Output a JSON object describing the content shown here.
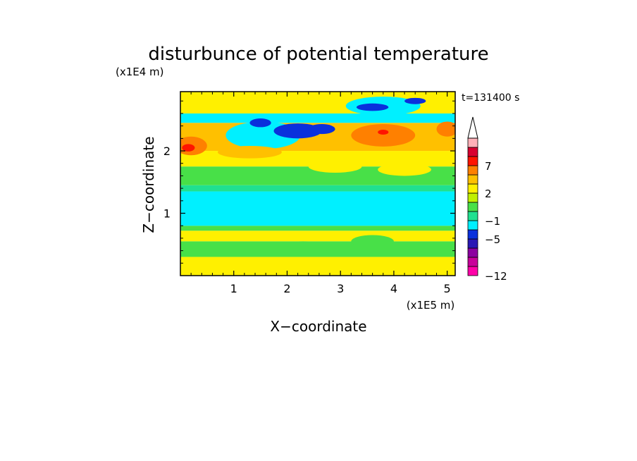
{
  "chart_data": {
    "type": "heatmap",
    "title": "disturbunce of potential temperature",
    "time_label": "t=131400 s",
    "xlabel": "X−coordinate",
    "ylabel": "Z−coordinate",
    "x_scale_label": "(x1E5 m)",
    "y_scale_label": "(x1E4 m)",
    "xlim": [
      0,
      5.15
    ],
    "ylim": [
      0,
      2.95
    ],
    "x_ticks": [
      1,
      2,
      3,
      4,
      5
    ],
    "y_ticks": [
      1,
      2
    ],
    "x_tick_labels": [
      "1",
      "2",
      "3",
      "4",
      "5"
    ],
    "y_tick_labels": [
      "1",
      "2"
    ],
    "colorbar": {
      "levels": [
        -12,
        -11,
        -9,
        -7,
        -5,
        -3,
        -1,
        0,
        1,
        2,
        3,
        5,
        7,
        9,
        11
      ],
      "labeled_levels": [
        {
          "value": 7,
          "text": "7"
        },
        {
          "value": 2,
          "text": "2"
        },
        {
          "value": -1,
          "text": "−1"
        },
        {
          "value": -5,
          "text": "−5"
        },
        {
          "value": -12,
          "text": "−12"
        }
      ],
      "colors": [
        "#ff00a8",
        "#c8009a",
        "#8c00a0",
        "#2a18b4",
        "#0a30dc",
        "#00f0ff",
        "#20e090",
        "#48e048",
        "#c0f000",
        "#fff000",
        "#ffc000",
        "#ff8000",
        "#ff1400",
        "#d80030",
        "#ffb0b8"
      ],
      "extend_top": true
    },
    "bands": [
      {
        "z": [
          0.0,
          0.3
        ],
        "color": "#fff000"
      },
      {
        "z": [
          0.3,
          0.55
        ],
        "color": "#48e048"
      },
      {
        "z": [
          0.55,
          0.72
        ],
        "color": "#fff000"
      },
      {
        "z": [
          0.72,
          0.8
        ],
        "color": "#48e048"
      },
      {
        "z": [
          0.8,
          1.35
        ],
        "color": "#00f0ff"
      },
      {
        "z": [
          1.35,
          1.45
        ],
        "color": "#20e090"
      },
      {
        "z": [
          1.45,
          1.75
        ],
        "color": "#48e048"
      },
      {
        "z": [
          1.75,
          2.0
        ],
        "color": "#fff000"
      },
      {
        "z": [
          2.0,
          2.45
        ],
        "color": "#ffc000"
      },
      {
        "z": [
          2.45,
          2.6
        ],
        "color": "#00f0ff"
      },
      {
        "z": [
          2.6,
          2.95
        ],
        "color": "#fff000"
      }
    ],
    "features": [
      {
        "x": 1.4,
        "z": 2.32,
        "rx": 0.35,
        "rz": 0.1,
        "color": "#00f0ff"
      },
      {
        "x": 1.55,
        "z": 2.25,
        "rx": 0.7,
        "rz": 0.22,
        "color": "#00f0ff"
      },
      {
        "x": 2.2,
        "z": 2.32,
        "rx": 0.45,
        "rz": 0.12,
        "color": "#0a30dc"
      },
      {
        "x": 1.5,
        "z": 2.45,
        "rx": 0.2,
        "rz": 0.07,
        "color": "#0a30dc"
      },
      {
        "x": 2.65,
        "z": 2.35,
        "rx": 0.25,
        "rz": 0.08,
        "color": "#0a30dc"
      },
      {
        "x": 3.8,
        "z": 2.72,
        "rx": 0.7,
        "rz": 0.15,
        "color": "#00f0ff"
      },
      {
        "x": 3.6,
        "z": 2.7,
        "rx": 0.3,
        "rz": 0.06,
        "color": "#0a30dc"
      },
      {
        "x": 4.4,
        "z": 2.8,
        "rx": 0.2,
        "rz": 0.05,
        "color": "#0a30dc"
      },
      {
        "x": 0.2,
        "z": 2.08,
        "rx": 0.3,
        "rz": 0.15,
        "color": "#ff8000"
      },
      {
        "x": 0.15,
        "z": 2.05,
        "rx": 0.12,
        "rz": 0.06,
        "color": "#ff1400"
      },
      {
        "x": 3.8,
        "z": 2.25,
        "rx": 0.6,
        "rz": 0.18,
        "color": "#ff8000"
      },
      {
        "x": 3.8,
        "z": 2.3,
        "rx": 0.1,
        "rz": 0.04,
        "color": "#ff1400"
      },
      {
        "x": 5.0,
        "z": 2.35,
        "rx": 0.2,
        "rz": 0.12,
        "color": "#ff8000"
      },
      {
        "x": 2.9,
        "z": 1.75,
        "rx": 0.5,
        "rz": 0.1,
        "color": "#fff000"
      },
      {
        "x": 4.2,
        "z": 1.7,
        "rx": 0.5,
        "rz": 0.1,
        "color": "#fff000"
      },
      {
        "x": 1.3,
        "z": 1.98,
        "rx": 0.6,
        "rz": 0.1,
        "color": "#ffc000"
      },
      {
        "x": 2.3,
        "z": 0.45,
        "rx": 0.5,
        "rz": 0.1,
        "color": "#48e048"
      },
      {
        "x": 3.6,
        "z": 0.55,
        "rx": 0.4,
        "rz": 0.1,
        "color": "#48e048"
      }
    ]
  }
}
